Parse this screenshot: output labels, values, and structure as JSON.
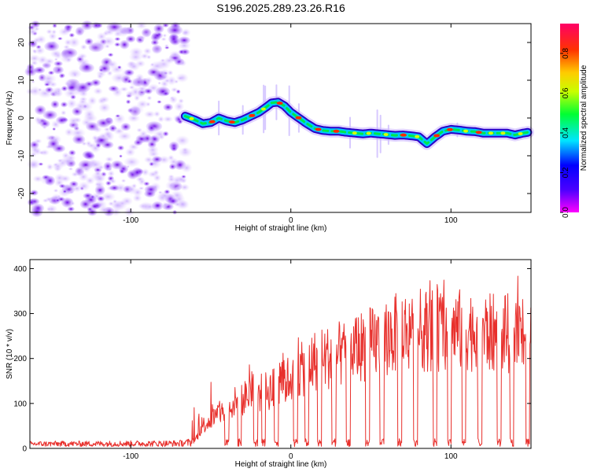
{
  "title": "S196.2025.289.23.26.R16",
  "chart_data": [
    {
      "type": "heatmap",
      "xlabel": "Height of straight line (km)",
      "ylabel": "Frequency (Hz)",
      "xlim": [
        -163,
        150
      ],
      "ylim": [
        -25,
        25
      ],
      "xticks": [
        -100,
        0,
        100
      ],
      "yticks": [
        -20,
        -10,
        0,
        10,
        20
      ],
      "noise_region": [
        -163,
        -65
      ],
      "ridge": {
        "x": [
          -66,
          -60,
          -55,
          -50,
          -45,
          -40,
          -35,
          -30,
          -25,
          -20,
          -15,
          -12,
          -8,
          -4,
          0,
          5,
          10,
          15,
          20,
          25,
          30,
          35,
          40,
          45,
          50,
          55,
          60,
          65,
          70,
          75,
          80,
          85,
          90,
          95,
          100,
          105,
          110,
          115,
          120,
          125,
          130,
          135,
          140,
          145,
          148
        ],
        "y": [
          0.5,
          -0.5,
          -1.5,
          -1.2,
          0,
          -0.8,
          -1.2,
          -0.5,
          0.5,
          1.5,
          3.0,
          4.0,
          4.2,
          3.2,
          1.5,
          0,
          -1.5,
          -2.8,
          -3.3,
          -3.5,
          -3.5,
          -3.8,
          -4.0,
          -4.2,
          -4.0,
          -4.2,
          -4.4,
          -4.6,
          -4.5,
          -4.7,
          -5.0,
          -6.8,
          -5.0,
          -3.5,
          -3.0,
          -3.2,
          -3.5,
          -3.6,
          -4.0,
          -4.0,
          -4.0,
          -4.0,
          -4.5,
          -4.0,
          -3.8
        ]
      },
      "colorbar": {
        "label": "Normalized spectral amplitude",
        "range": [
          0,
          0.95
        ],
        "ticks": [
          0.0,
          0.2,
          0.4,
          0.6,
          0.8
        ]
      }
    },
    {
      "type": "line",
      "xlabel": "Height of straight line (km)",
      "ylabel": "SNR (10 * v/v)",
      "xlim": [
        -163,
        150
      ],
      "ylim": [
        0,
        420
      ],
      "xticks": [
        -100,
        0,
        100
      ],
      "yticks": [
        0,
        100,
        200,
        300,
        400
      ],
      "line_color": "#e8302c",
      "envelope": {
        "x": [
          -163,
          -70,
          -60,
          -55,
          -45,
          -35,
          -25,
          -15,
          -5,
          5,
          15,
          25,
          35,
          45,
          55,
          65,
          75,
          85,
          95,
          105,
          115,
          125,
          135,
          145,
          150
        ],
        "y": [
          12,
          14,
          20,
          60,
          90,
          120,
          140,
          150,
          170,
          200,
          230,
          240,
          250,
          270,
          280,
          300,
          310,
          310,
          310,
          310,
          310,
          300,
          300,
          300,
          300
        ]
      },
      "dropouts": [
        -40,
        -32,
        -22,
        -17,
        -9,
        3,
        10,
        18,
        27,
        36,
        48,
        57,
        68,
        78,
        90,
        99,
        108,
        118,
        130,
        138,
        148
      ]
    }
  ]
}
